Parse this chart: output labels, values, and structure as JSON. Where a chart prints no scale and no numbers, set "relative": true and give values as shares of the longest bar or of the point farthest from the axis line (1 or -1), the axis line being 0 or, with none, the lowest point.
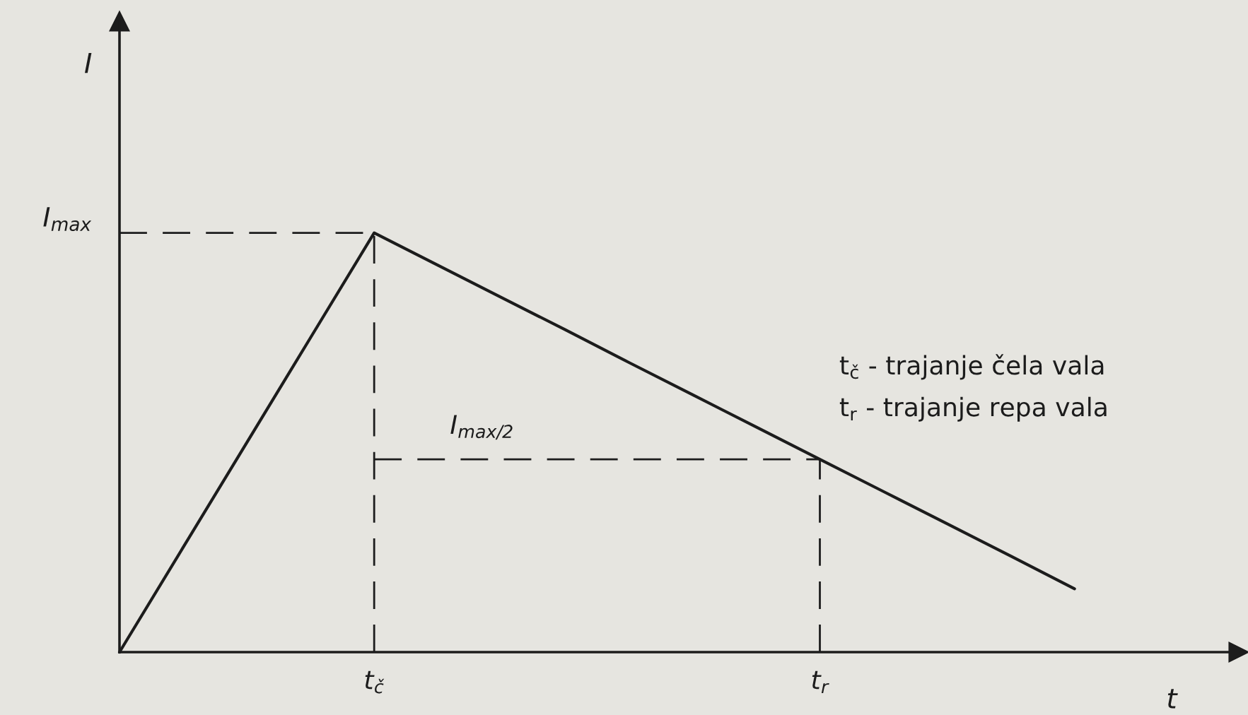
{
  "chart_data": {
    "type": "line",
    "relative": true,
    "xlabel": "t",
    "categories": [
      null,
      null,
      null,
      null,
      "t$_{č}$",
      null,
      null,
      null,
      null,
      null,
      null,
      "t$_{r}$",
      null,
      null,
      null,
      null
    ],
    "series": [
      {
        "color": "#1c1c1c",
        "values": [
          0,
          0.25,
          0.5,
          0.75,
          1,
          0.923,
          0.846,
          0.769,
          0.691,
          0.614,
          0.537,
          0.46,
          0.383,
          0.306,
          0.229,
          0.151
        ]
      }
    ],
    "ref_lines": [
      {
        "axis": "x",
        "value": "t$_{č}$",
        "line_style": "dashed",
        "color": "#1c1c1c"
      },
      {
        "axis": "x",
        "value": "t$_{r}$",
        "line_style": "dashed",
        "color": "#1c1c1c"
      },
      {
        "axis": "y",
        "value": 1,
        "label": "I$_{max}$",
        "line_style": "dashed",
        "color": "#1c1c1c"
      },
      {
        "axis": "y",
        "value": 0.46,
        "label": "I$_{max/2}$",
        "line_style": "dashed",
        "color": "#1c1c1c"
      }
    ],
    "annotations": [
      "I",
      "t$_{č}$ - trajanje čela vala",
      "t$_{r}$ - trajanje repa vala"
    ],
    "line_style": "solid"
  }
}
